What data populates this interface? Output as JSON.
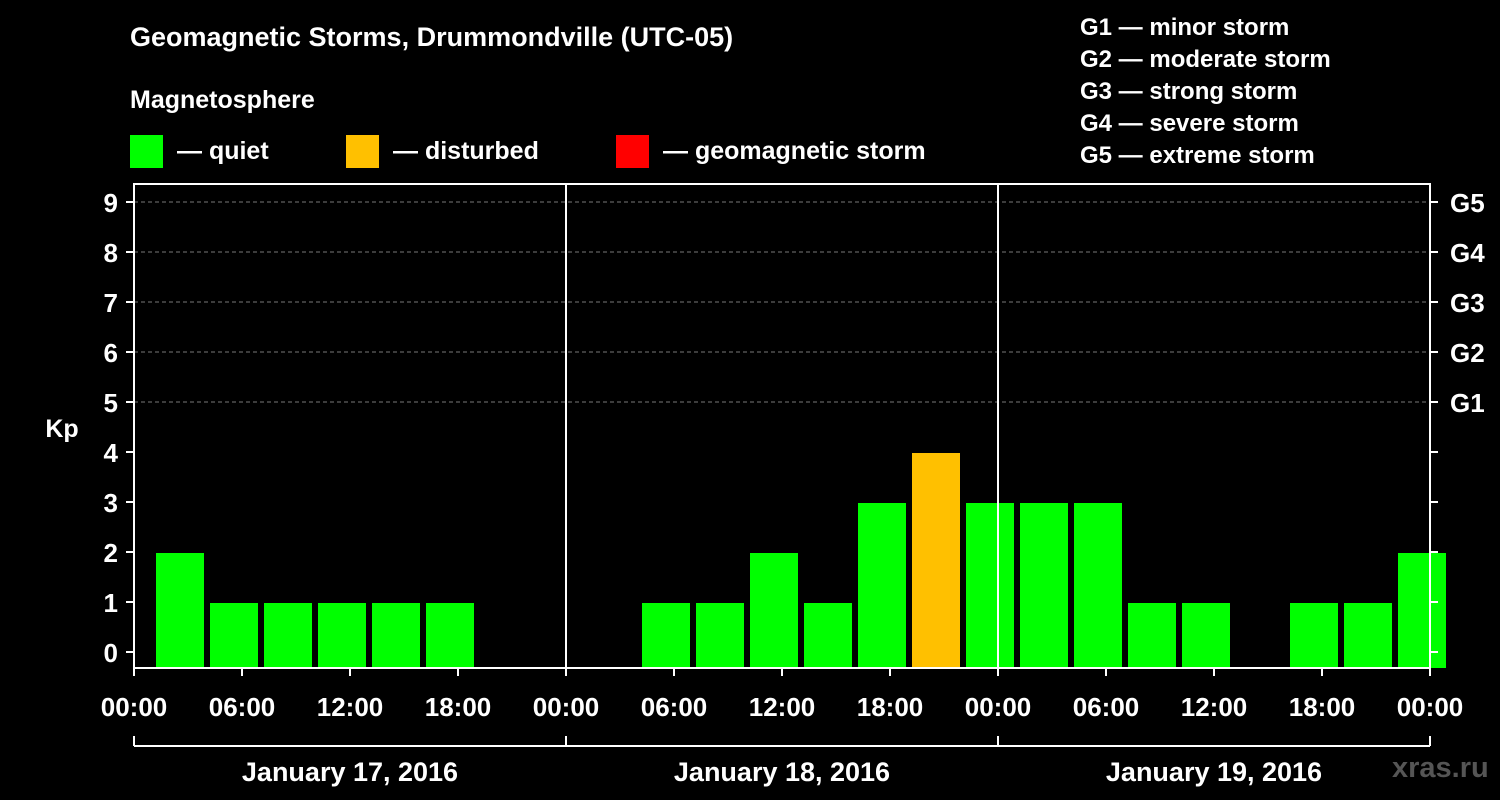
{
  "title": "Geomagnetic Storms, Drummondville (UTC-05)",
  "legend": {
    "heading": "Magnetosphere",
    "items": [
      {
        "label": "— quiet",
        "color": "#00ff00"
      },
      {
        "label": "— disturbed",
        "color": "#ffc000"
      },
      {
        "label": "— geomagnetic storm",
        "color": "#ff0000"
      }
    ]
  },
  "g_scale": [
    "G1 — minor storm",
    "G2 — moderate storm",
    "G3 — strong storm",
    "G4 — severe storm",
    "G5 — extreme storm"
  ],
  "watermark": "xras.ru",
  "chart_data": {
    "type": "bar",
    "ylabel": "Kp",
    "ylim": [
      0,
      9
    ],
    "yticks": [
      0,
      1,
      2,
      3,
      4,
      5,
      6,
      7,
      8,
      9
    ],
    "right_axis": [
      {
        "kp": 5,
        "label": "G1"
      },
      {
        "kp": 6,
        "label": "G2"
      },
      {
        "kp": 7,
        "label": "G3"
      },
      {
        "kp": 8,
        "label": "G4"
      },
      {
        "kp": 9,
        "label": "G5"
      }
    ],
    "grid": "dashed horizontal at Kp 5-9",
    "xtick_labels": [
      "00:00",
      "06:00",
      "12:00",
      "18:00",
      "00:00",
      "06:00",
      "12:00",
      "18:00",
      "00:00",
      "06:00",
      "12:00",
      "18:00",
      "00:00"
    ],
    "days": [
      "January 17, 2016",
      "January 18, 2016",
      "January 19, 2016"
    ],
    "bars": [
      {
        "day": 0,
        "hour": 3,
        "kp": 2,
        "level": "quiet"
      },
      {
        "day": 0,
        "hour": 6,
        "kp": 1,
        "level": "quiet"
      },
      {
        "day": 0,
        "hour": 9,
        "kp": 1,
        "level": "quiet"
      },
      {
        "day": 0,
        "hour": 12,
        "kp": 1,
        "level": "quiet"
      },
      {
        "day": 0,
        "hour": 15,
        "kp": 1,
        "level": "quiet"
      },
      {
        "day": 0,
        "hour": 18,
        "kp": 1,
        "level": "quiet"
      },
      {
        "day": 1,
        "hour": 6,
        "kp": 1,
        "level": "quiet"
      },
      {
        "day": 1,
        "hour": 9,
        "kp": 1,
        "level": "quiet"
      },
      {
        "day": 1,
        "hour": 12,
        "kp": 2,
        "level": "quiet"
      },
      {
        "day": 1,
        "hour": 15,
        "kp": 1,
        "level": "quiet"
      },
      {
        "day": 1,
        "hour": 18,
        "kp": 3,
        "level": "quiet"
      },
      {
        "day": 1,
        "hour": 21,
        "kp": 4,
        "level": "disturbed"
      },
      {
        "day": 2,
        "hour": 0,
        "kp": 3,
        "level": "quiet"
      },
      {
        "day": 2,
        "hour": 3,
        "kp": 3,
        "level": "quiet"
      },
      {
        "day": 2,
        "hour": 6,
        "kp": 3,
        "level": "quiet"
      },
      {
        "day": 2,
        "hour": 9,
        "kp": 1,
        "level": "quiet"
      },
      {
        "day": 2,
        "hour": 12,
        "kp": 1,
        "level": "quiet"
      },
      {
        "day": 2,
        "hour": 18,
        "kp": 1,
        "level": "quiet"
      },
      {
        "day": 2,
        "hour": 21,
        "kp": 1,
        "level": "quiet"
      },
      {
        "day": 3,
        "hour": 0,
        "kp": 2,
        "level": "quiet"
      }
    ]
  }
}
